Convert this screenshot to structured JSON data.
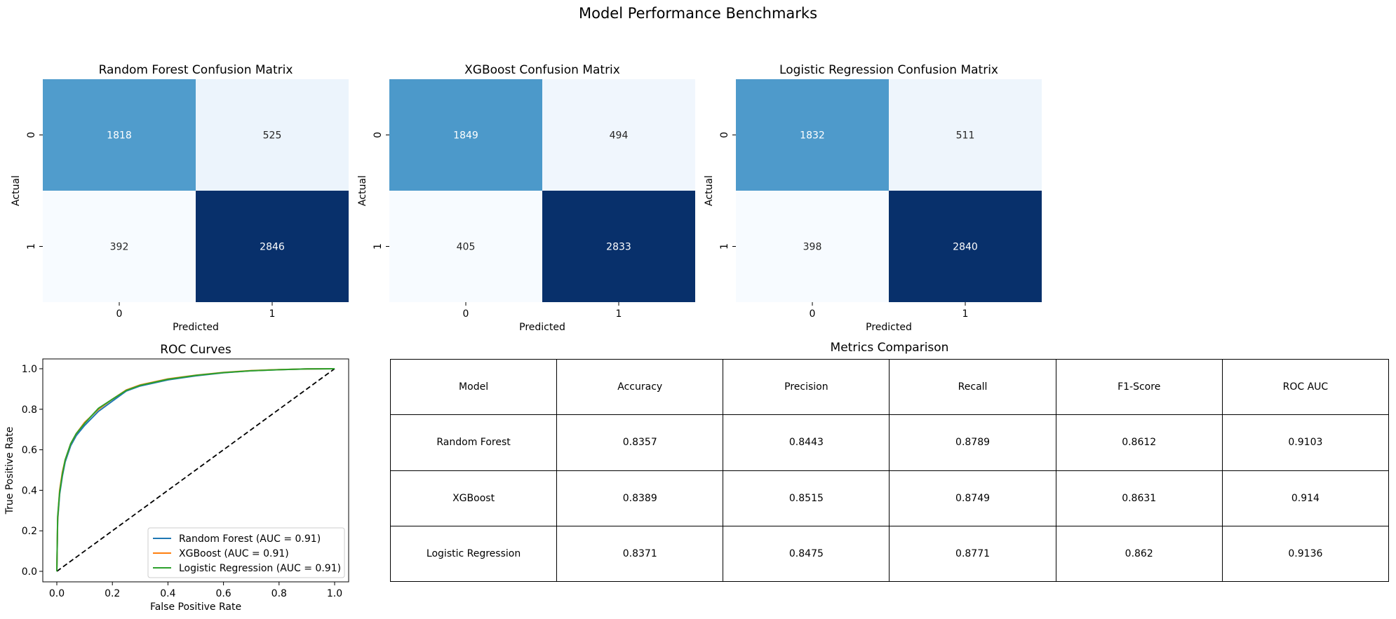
{
  "figure": {
    "title": "Model Performance Benchmarks"
  },
  "chart_data": [
    {
      "type": "heatmap",
      "title": "Random Forest Confusion Matrix",
      "xlabel": "Predicted",
      "ylabel": "Actual",
      "x_ticks": [
        "0",
        "1"
      ],
      "y_ticks": [
        "0",
        "1"
      ],
      "matrix": [
        [
          1818,
          525
        ],
        [
          392,
          2846
        ]
      ],
      "colormap": "Blues"
    },
    {
      "type": "heatmap",
      "title": "XGBoost Confusion Matrix",
      "xlabel": "Predicted",
      "ylabel": "Actual",
      "x_ticks": [
        "0",
        "1"
      ],
      "y_ticks": [
        "0",
        "1"
      ],
      "matrix": [
        [
          1849,
          494
        ],
        [
          405,
          2833
        ]
      ],
      "colormap": "Blues"
    },
    {
      "type": "heatmap",
      "title": "Logistic Regression Confusion Matrix",
      "xlabel": "Predicted",
      "ylabel": "Actual",
      "x_ticks": [
        "0",
        "1"
      ],
      "y_ticks": [
        "0",
        "1"
      ],
      "matrix": [
        [
          1832,
          511
        ],
        [
          398,
          2840
        ]
      ],
      "colormap": "Blues"
    },
    {
      "type": "line",
      "title": "ROC Curves",
      "xlabel": "False Positive Rate",
      "ylabel": "True Positive Rate",
      "xlim": [
        0,
        1
      ],
      "ylim": [
        0,
        1
      ],
      "x_ticks": [
        "0.0",
        "0.2",
        "0.4",
        "0.6",
        "0.8",
        "1.0"
      ],
      "y_ticks": [
        "0.0",
        "0.2",
        "0.4",
        "0.6",
        "0.8",
        "1.0"
      ],
      "legend_position": "lower-right",
      "series": [
        {
          "name": "Random Forest (AUC = 0.91)",
          "color": "#1f77b4",
          "x": [
            0,
            0.003,
            0.01,
            0.02,
            0.03,
            0.05,
            0.07,
            0.1,
            0.15,
            0.2,
            0.25,
            0.3,
            0.4,
            0.5,
            0.6,
            0.7,
            0.8,
            0.9,
            1.0
          ],
          "y": [
            0,
            0.25,
            0.38,
            0.47,
            0.54,
            0.62,
            0.67,
            0.72,
            0.79,
            0.84,
            0.89,
            0.915,
            0.945,
            0.965,
            0.98,
            0.99,
            0.995,
            0.999,
            1.0
          ]
        },
        {
          "name": "XGBoost (AUC = 0.91)",
          "color": "#ff7f0e",
          "x": [
            0,
            0.003,
            0.01,
            0.02,
            0.03,
            0.05,
            0.07,
            0.1,
            0.15,
            0.2,
            0.25,
            0.3,
            0.4,
            0.5,
            0.6,
            0.7,
            0.8,
            0.9,
            1.0
          ],
          "y": [
            0,
            0.26,
            0.4,
            0.49,
            0.55,
            0.63,
            0.68,
            0.735,
            0.8,
            0.85,
            0.895,
            0.92,
            0.95,
            0.968,
            0.982,
            0.991,
            0.996,
            0.999,
            1.0
          ]
        },
        {
          "name": "Logistic Regression (AUC = 0.91)",
          "color": "#2ca02c",
          "x": [
            0,
            0.003,
            0.01,
            0.02,
            0.03,
            0.05,
            0.07,
            0.1,
            0.15,
            0.2,
            0.25,
            0.3,
            0.4,
            0.5,
            0.6,
            0.7,
            0.8,
            0.9,
            1.0
          ],
          "y": [
            0,
            0.27,
            0.39,
            0.48,
            0.55,
            0.63,
            0.68,
            0.73,
            0.805,
            0.85,
            0.893,
            0.918,
            0.948,
            0.967,
            0.981,
            0.99,
            0.995,
            0.999,
            1.0
          ]
        }
      ],
      "reference_line": {
        "style": "dashed",
        "color": "#000000",
        "x": [
          0,
          1
        ],
        "y": [
          0,
          1
        ]
      }
    },
    {
      "type": "table",
      "title": "Metrics Comparison",
      "columns": [
        "Model",
        "Accuracy",
        "Precision",
        "Recall",
        "F1-Score",
        "ROC AUC"
      ],
      "rows": [
        [
          "Random Forest",
          "0.8357",
          "0.8443",
          "0.8789",
          "0.8612",
          "0.9103"
        ],
        [
          "XGBoost",
          "0.8389",
          "0.8515",
          "0.8749",
          "0.8631",
          "0.914"
        ],
        [
          "Logistic Regression",
          "0.8371",
          "0.8475",
          "0.8771",
          "0.862",
          "0.9136"
        ]
      ]
    }
  ]
}
